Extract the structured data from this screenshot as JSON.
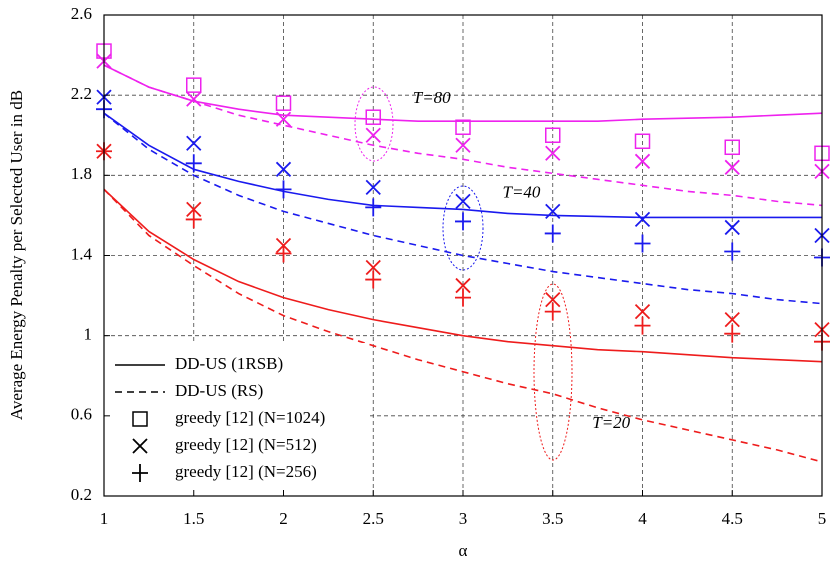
{
  "chart_data": {
    "type": "line",
    "x_label": "α",
    "y_label": "Average Energy Penalty per Selected User in dB",
    "xlim": [
      1,
      5
    ],
    "ylim": [
      0.2,
      2.6
    ],
    "xticks": [
      1,
      1.5,
      2,
      2.5,
      3,
      3.5,
      4,
      4.5,
      5
    ],
    "yticks": [
      0.2,
      0.6,
      1,
      1.4,
      1.8,
      2.2,
      2.6
    ],
    "grid": true,
    "legend_position": "lower left",
    "legend": [
      {
        "label": "DD-US (1RSB)",
        "dash": "solid"
      },
      {
        "label": "DD-US (RS)",
        "dash": "dashed"
      },
      {
        "label": "greedy [12] (N=1024)",
        "marker": "square"
      },
      {
        "label": "greedy [12] (N=512)",
        "marker": "x"
      },
      {
        "label": "greedy [12] (N=256)",
        "marker": "plus"
      }
    ],
    "annotations": [
      {
        "text": "T=80",
        "x": 2.72,
        "y": 2.18,
        "color": "#ee22ee"
      },
      {
        "text": "T=40",
        "x": 3.22,
        "y": 1.71,
        "color": "#1a1aee"
      },
      {
        "text": "T=20",
        "x": 3.72,
        "y": 0.56,
        "color": "#ee1c1c"
      }
    ],
    "series": [
      {
        "color": "#ee1c1c",
        "dash": "solid",
        "x": [
          1,
          1.25,
          1.5,
          1.75,
          2,
          2.25,
          2.5,
          2.75,
          3,
          3.25,
          3.5,
          3.75,
          4,
          4.25,
          4.5,
          4.75,
          5
        ],
        "values": [
          1.73,
          1.52,
          1.38,
          1.27,
          1.19,
          1.13,
          1.08,
          1.04,
          1.0,
          0.97,
          0.95,
          0.93,
          0.92,
          0.905,
          0.89,
          0.88,
          0.87
        ]
      },
      {
        "color": "#ee1c1c",
        "dash": "dashed",
        "x": [
          1,
          1.25,
          1.5,
          1.75,
          2,
          2.25,
          2.5,
          2.75,
          3,
          3.25,
          3.5,
          3.75,
          4,
          4.25,
          4.5,
          4.75,
          5
        ],
        "values": [
          1.73,
          1.5,
          1.35,
          1.21,
          1.1,
          1.02,
          0.95,
          0.88,
          0.82,
          0.76,
          0.71,
          0.64,
          0.58,
          0.53,
          0.48,
          0.43,
          0.37
        ]
      },
      {
        "color": "#1a1aee",
        "dash": "solid",
        "x": [
          1,
          1.25,
          1.5,
          1.75,
          2,
          2.25,
          2.5,
          2.75,
          3,
          3.25,
          3.5,
          3.75,
          4,
          4.25,
          4.5,
          4.75,
          5
        ],
        "values": [
          2.11,
          1.95,
          1.83,
          1.77,
          1.72,
          1.68,
          1.65,
          1.64,
          1.63,
          1.61,
          1.6,
          1.595,
          1.59,
          1.59,
          1.59,
          1.59,
          1.59
        ]
      },
      {
        "color": "#1a1aee",
        "dash": "dashed",
        "x": [
          1,
          1.25,
          1.5,
          1.75,
          2,
          2.25,
          2.5,
          2.75,
          3,
          3.25,
          3.5,
          3.75,
          4,
          4.25,
          4.5,
          4.75,
          5
        ],
        "values": [
          2.11,
          1.93,
          1.8,
          1.7,
          1.62,
          1.56,
          1.5,
          1.45,
          1.4,
          1.36,
          1.32,
          1.29,
          1.26,
          1.23,
          1.21,
          1.18,
          1.16
        ]
      },
      {
        "color": "#ee22ee",
        "dash": "solid",
        "x": [
          1,
          1.25,
          1.5,
          1.75,
          2,
          2.25,
          2.5,
          2.75,
          3,
          3.25,
          3.5,
          3.75,
          4,
          4.25,
          4.5,
          4.75,
          5
        ],
        "values": [
          2.35,
          2.24,
          2.17,
          2.13,
          2.1,
          2.09,
          2.08,
          2.07,
          2.07,
          2.07,
          2.07,
          2.07,
          2.08,
          2.085,
          2.09,
          2.1,
          2.11
        ]
      },
      {
        "color": "#ee22ee",
        "dash": "dashed",
        "x": [
          1,
          1.25,
          1.5,
          1.75,
          2,
          2.25,
          2.5,
          2.75,
          3,
          3.25,
          3.5,
          3.75,
          4,
          4.25,
          4.5,
          4.75,
          5
        ],
        "values": [
          2.35,
          2.24,
          2.17,
          2.1,
          2.05,
          2.0,
          1.95,
          1.91,
          1.88,
          1.84,
          1.81,
          1.78,
          1.75,
          1.72,
          1.7,
          1.67,
          1.65
        ]
      },
      {
        "color": "#ee22ee",
        "marker": "square",
        "x": [
          1,
          1.5,
          2,
          2.5,
          3,
          3.5,
          4,
          4.5,
          5
        ],
        "values": [
          2.42,
          2.25,
          2.16,
          2.09,
          2.04,
          2.0,
          1.97,
          1.94,
          1.91
        ]
      },
      {
        "color": "#ee22ee",
        "marker": "x",
        "x": [
          1,
          1.5,
          2,
          2.5,
          3,
          3.5,
          4,
          4.5,
          5
        ],
        "values": [
          2.37,
          2.18,
          2.08,
          2.0,
          1.95,
          1.91,
          1.87,
          1.84,
          1.82
        ]
      },
      {
        "color": "#1a1aee",
        "marker": "x",
        "x": [
          1,
          1.5,
          2,
          2.5,
          3,
          3.5,
          4,
          4.5,
          5
        ],
        "values": [
          2.19,
          1.96,
          1.83,
          1.74,
          1.67,
          1.62,
          1.58,
          1.54,
          1.5
        ]
      },
      {
        "color": "#ee1c1c",
        "marker": "x",
        "x": [
          1,
          1.5,
          2,
          2.5,
          3,
          3.5,
          4,
          4.5,
          5
        ],
        "values": [
          1.92,
          1.63,
          1.45,
          1.34,
          1.25,
          1.18,
          1.12,
          1.08,
          1.03
        ]
      },
      {
        "color": "#1a1aee",
        "marker": "plus",
        "x": [
          1,
          1.5,
          2,
          2.5,
          3,
          3.5,
          4,
          4.5,
          5
        ],
        "values": [
          2.13,
          1.86,
          1.73,
          1.64,
          1.57,
          1.51,
          1.46,
          1.42,
          1.39
        ]
      },
      {
        "color": "#ee1c1c",
        "marker": "plus",
        "x": [
          1,
          1.5,
          2,
          2.5,
          3,
          3.5,
          4,
          4.5,
          5
        ],
        "values": [
          1.92,
          1.58,
          1.41,
          1.28,
          1.19,
          1.12,
          1.05,
          1.01,
          0.97
        ]
      }
    ]
  }
}
